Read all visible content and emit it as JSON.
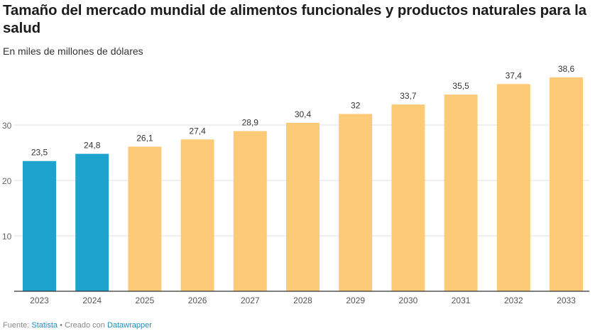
{
  "title": "Tamaño del mercado mundial de alimentos funcionales y productos naturales para la salud",
  "subtitle": "En miles de millones de dólares",
  "footer": {
    "source_prefix": "Fuente: ",
    "source_name": "Statista",
    "separator": " • Creado con ",
    "tool_name": "Datawrapper"
  },
  "colors": {
    "historical": "#1ca4cf",
    "forecast": "#fdca77",
    "grid": "#e1e1e1",
    "baseline": "#333333"
  },
  "chart_data": {
    "type": "bar",
    "categories": [
      "2023",
      "2024",
      "2025",
      "2026",
      "2027",
      "2028",
      "2029",
      "2030",
      "2031",
      "2032",
      "2033"
    ],
    "values": [
      23.5,
      24.8,
      26.1,
      27.4,
      28.9,
      30.4,
      32,
      33.7,
      35.5,
      37.4,
      38.6
    ],
    "value_labels": [
      "23,5",
      "24,8",
      "26,1",
      "27,4",
      "28,9",
      "30,4",
      "32",
      "33,7",
      "35,5",
      "37,4",
      "38,6"
    ],
    "bar_colors": [
      "historical",
      "historical",
      "forecast",
      "forecast",
      "forecast",
      "forecast",
      "forecast",
      "forecast",
      "forecast",
      "forecast",
      "forecast"
    ],
    "yticks": [
      10,
      20,
      30
    ],
    "ytick_labels": [
      "10",
      "20",
      "30"
    ],
    "ylim": [
      0,
      40
    ],
    "grid": true,
    "xlabel": "",
    "ylabel": ""
  }
}
